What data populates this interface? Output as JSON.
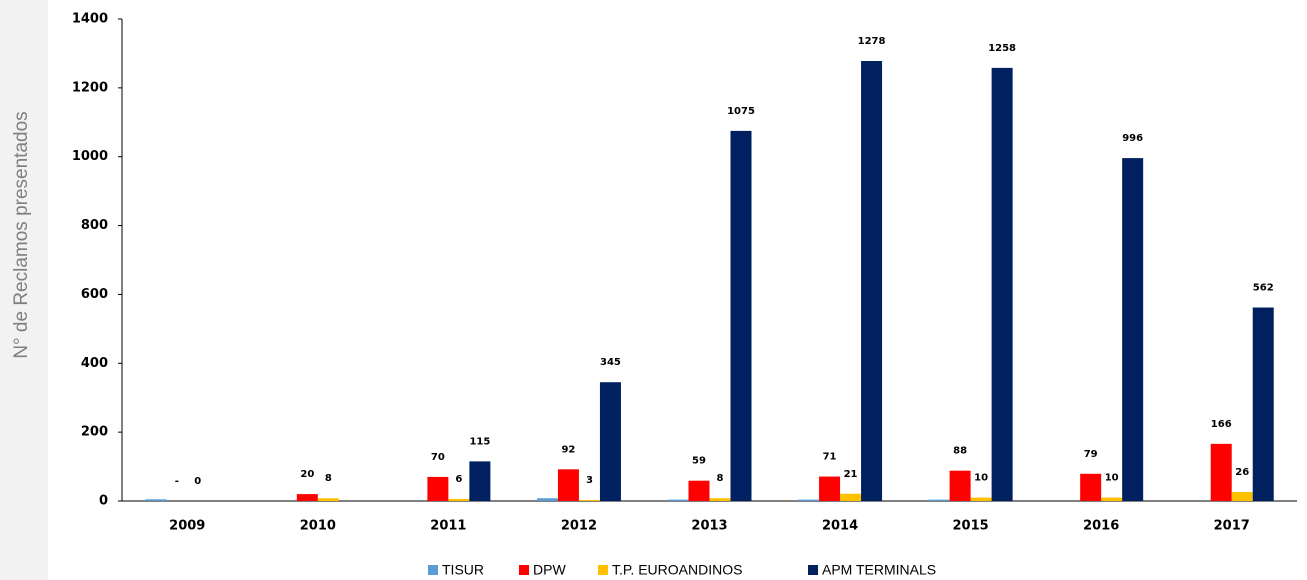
{
  "chart_data": {
    "type": "bar",
    "y_label": "N° de Reclamos presentados",
    "categories": [
      "2009",
      "2010",
      "2011",
      "2012",
      "2013",
      "2014",
      "2015",
      "2016",
      "2017"
    ],
    "series": [
      {
        "name": "TISUR",
        "color": "#5b9bd5",
        "show_labels": false,
        "values": [
          5,
          0,
          0,
          8,
          4,
          4,
          4,
          0,
          0
        ]
      },
      {
        "name": "DPW",
        "color": "#ff0000",
        "show_labels": true,
        "values": [
          null,
          20,
          70,
          92,
          59,
          71,
          88,
          79,
          166
        ],
        "value_labels": [
          "-",
          "20",
          "70",
          "92",
          "59",
          "71",
          "88",
          "79",
          "166"
        ]
      },
      {
        "name": "T.P. EUROANDINOS",
        "color": "#ffc000",
        "show_labels": true,
        "values": [
          0,
          8,
          6,
          3,
          8,
          21,
          10,
          10,
          26
        ]
      },
      {
        "name": "APM TERMINALS",
        "color": "#002060",
        "show_labels": true,
        "values": [
          null,
          null,
          115,
          345,
          1075,
          1278,
          1258,
          996,
          562
        ]
      }
    ],
    "ylim": [
      0,
      1400
    ],
    "yticks": [
      0,
      200,
      400,
      600,
      800,
      1000,
      1200,
      1400
    ],
    "grid": false,
    "legend": "bottom"
  }
}
